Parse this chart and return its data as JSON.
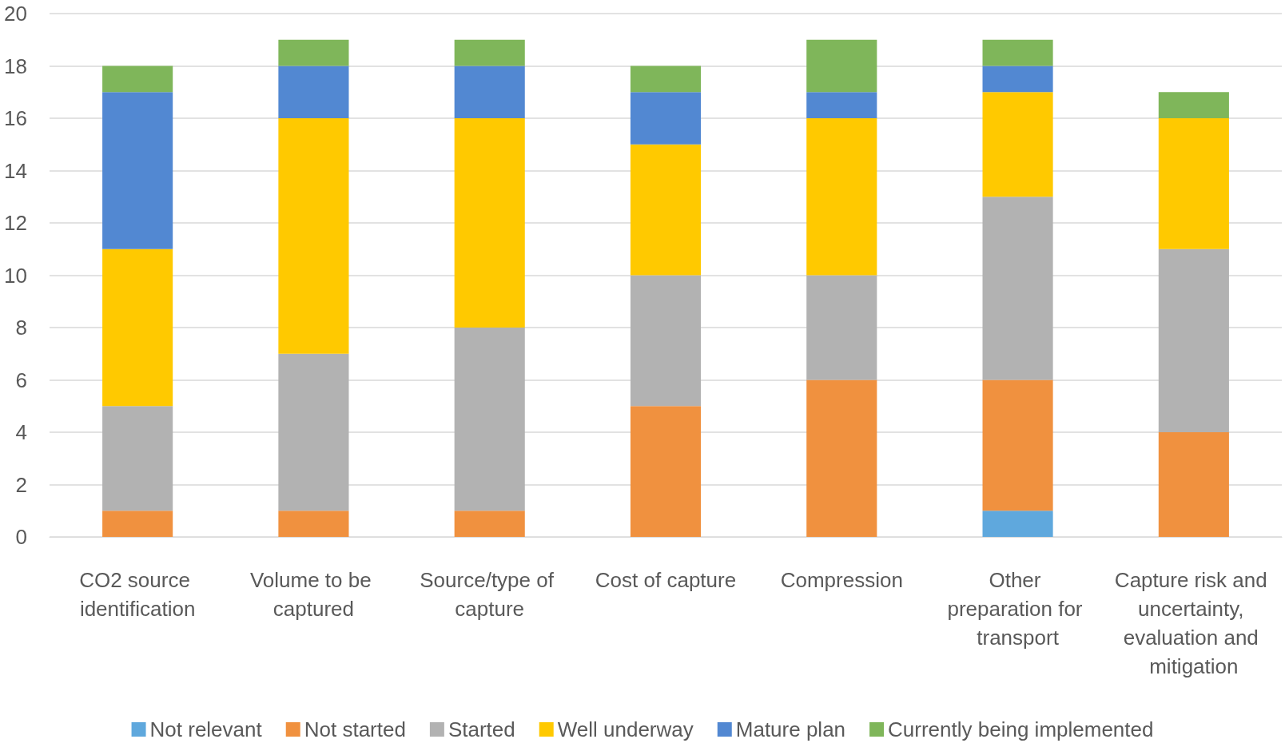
{
  "chart_data": {
    "type": "bar",
    "stacked": true,
    "categories": [
      "CO2 source identification",
      "Volume to be captured",
      "Source/type of capture",
      "Cost of capture",
      "Compression",
      "Other preparation for transport",
      "Capture risk and uncertainty, evaluation and mitigation"
    ],
    "series": [
      {
        "name": "Not relevant",
        "color": "#5fa8dd",
        "values": [
          0,
          0,
          0,
          0,
          0,
          1,
          0
        ]
      },
      {
        "name": "Not started",
        "color": "#f0913f",
        "values": [
          1,
          1,
          1,
          5,
          6,
          5,
          4
        ]
      },
      {
        "name": "Started",
        "color": "#b2b2b2",
        "values": [
          4,
          6,
          7,
          5,
          4,
          7,
          7
        ]
      },
      {
        "name": "Well underway",
        "color": "#ffc900",
        "values": [
          6,
          9,
          8,
          5,
          6,
          4,
          5
        ]
      },
      {
        "name": "Mature plan",
        "color": "#5288d2",
        "values": [
          6,
          2,
          2,
          2,
          1,
          1,
          0
        ]
      },
      {
        "name": "Currently being implemented",
        "color": "#7fb65a",
        "values": [
          1,
          1,
          1,
          1,
          2,
          1,
          1
        ]
      }
    ],
    "ylim": [
      0,
      20
    ],
    "yticks": [
      0,
      2,
      4,
      6,
      8,
      10,
      12,
      14,
      16,
      18,
      20
    ],
    "grid": "y",
    "legend": "bottom"
  }
}
